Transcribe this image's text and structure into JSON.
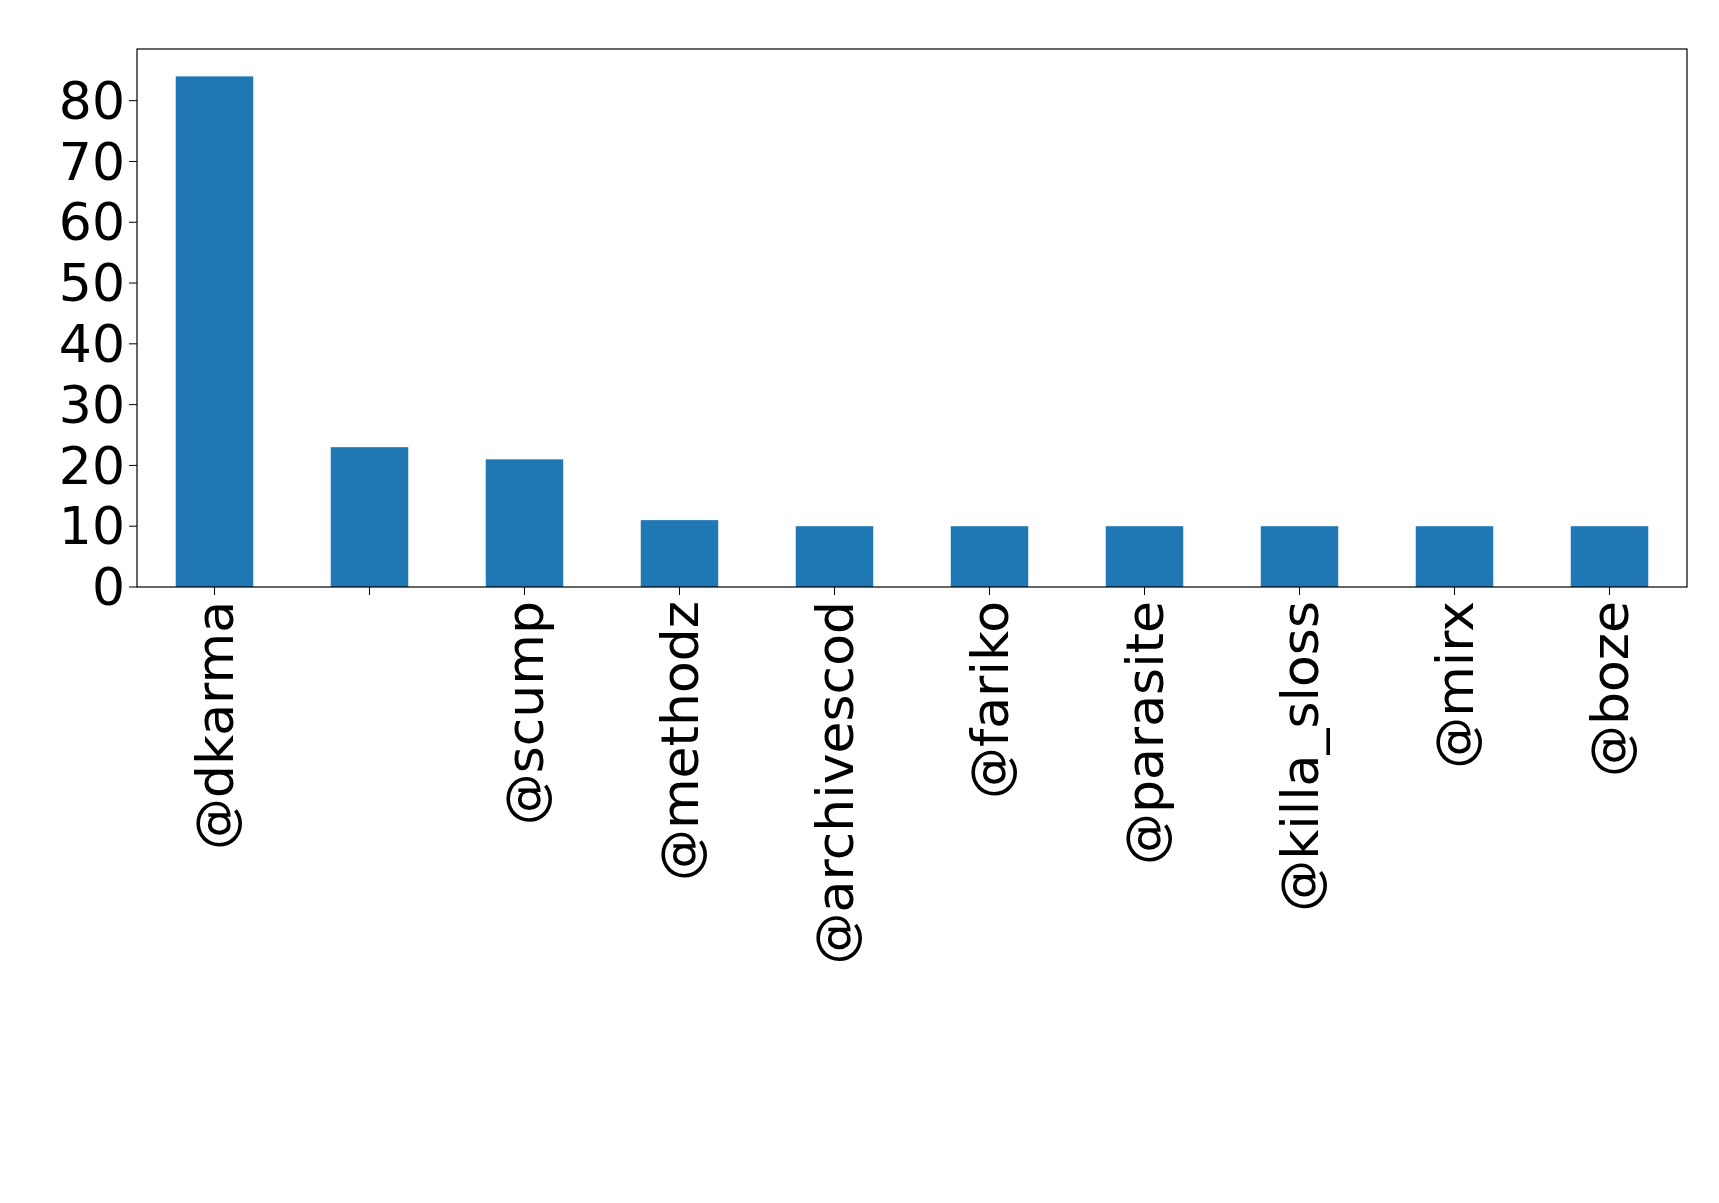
{
  "chart_data": {
    "type": "bar",
    "categories": [
      "@dkarma",
      null,
      "@scump",
      "@methodz",
      "@archivescod",
      "@fariko",
      "@parasite",
      "@killa_sloss",
      "@mirx",
      "@boze"
    ],
    "values": [
      84,
      23,
      21,
      11,
      10,
      10,
      10,
      10,
      10,
      10
    ],
    "color": "#1f77b4",
    "ylim": [
      0,
      88.5
    ],
    "yticks": [
      0,
      10,
      20,
      30,
      40,
      50,
      60,
      70,
      80
    ]
  }
}
